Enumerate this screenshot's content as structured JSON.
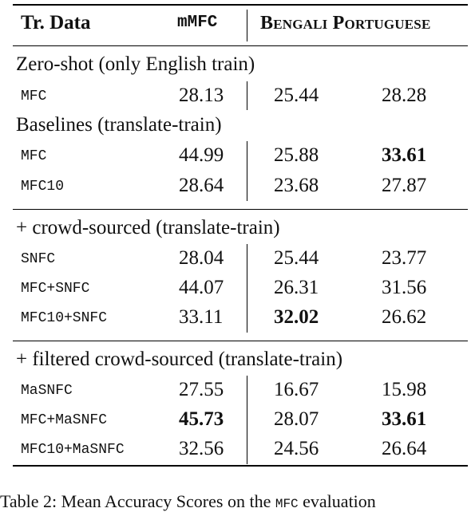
{
  "header": {
    "col_data": "Tr. Data",
    "col_mmfc": "mMFC",
    "col_langs": "Bengali Portuguese"
  },
  "sections": [
    {
      "title": "Zero-shot (only English train)",
      "rows": [
        {
          "data": "MFC",
          "mmfc": "28.13",
          "bengali": "25.44",
          "portuguese": "28.28"
        }
      ]
    },
    {
      "title": "Baselines (translate-train)",
      "rows": [
        {
          "data": "MFC",
          "mmfc": "44.99",
          "bengali": "25.88",
          "portuguese": "33.61"
        },
        {
          "data": "MFC10",
          "mmfc": "28.64",
          "bengali": "23.68",
          "portuguese": "27.87"
        }
      ]
    },
    {
      "title": "+ crowd-sourced (translate-train)",
      "rows": [
        {
          "data": "SNFC",
          "mmfc": "28.04",
          "bengali": "25.44",
          "portuguese": "23.77"
        },
        {
          "data": "MFC+SNFC",
          "mmfc": "44.07",
          "bengali": "26.31",
          "portuguese": "31.56"
        },
        {
          "data": "MFC10+SNFC",
          "mmfc": "33.11",
          "bengali": "32.02",
          "portuguese": "26.62"
        }
      ]
    },
    {
      "title": "+ filtered crowd-sourced (translate-train)",
      "rows": [
        {
          "data": "MaSNFC",
          "mmfc": "27.55",
          "bengali": "16.67",
          "portuguese": "15.98"
        },
        {
          "data": "MFC+MaSNFC",
          "mmfc": "45.73",
          "bengali": "28.07",
          "portuguese": "33.61"
        },
        {
          "data": "MFC10+MaSNFC",
          "mmfc": "32.56",
          "bengali": "24.56",
          "portuguese": "26.64"
        }
      ]
    }
  ],
  "caption": {
    "part1": "Table 2: Mean Accuracy Scores on the",
    "part2": "MFC",
    "part3": "evaluation"
  }
}
